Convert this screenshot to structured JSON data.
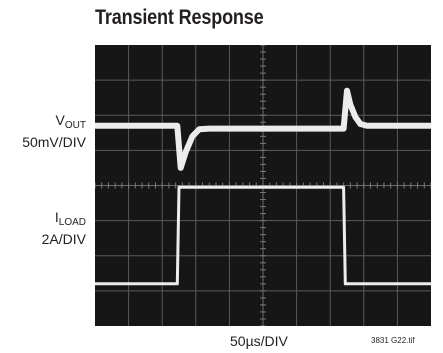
{
  "chart_data": {
    "type": "line",
    "title": "Transient Response",
    "xlabel": "50µs/DIV",
    "grid": true,
    "divisions": {
      "x": 10,
      "y": 8
    },
    "series": [
      {
        "name": "VOUT",
        "trace_label_main": "V",
        "trace_label_sub": "OUT",
        "scale": "50mV/DIV",
        "x": [
          0,
          2.4,
          2.45,
          2.55,
          2.7,
          2.9,
          3.1,
          3.4,
          4,
          5,
          6,
          7,
          7.4,
          7.5,
          7.6,
          7.75,
          7.9,
          8.1,
          8.5,
          9,
          10
        ],
        "y": [
          5.7,
          5.7,
          5.7,
          4.5,
          4.95,
          5.4,
          5.6,
          5.62,
          5.62,
          5.62,
          5.62,
          5.62,
          5.62,
          6.7,
          6.3,
          5.95,
          5.75,
          5.7,
          5.7,
          5.7,
          5.7
        ]
      },
      {
        "name": "ILOAD",
        "trace_label_main": "I",
        "trace_label_sub": "LOAD",
        "scale": "2A/DIV",
        "x": [
          0,
          2.45,
          2.5,
          7.4,
          7.45,
          10
        ],
        "y": [
          1.2,
          1.2,
          3.95,
          3.95,
          1.2,
          1.2
        ]
      }
    ],
    "figure_id": "3831 G22.tif"
  }
}
